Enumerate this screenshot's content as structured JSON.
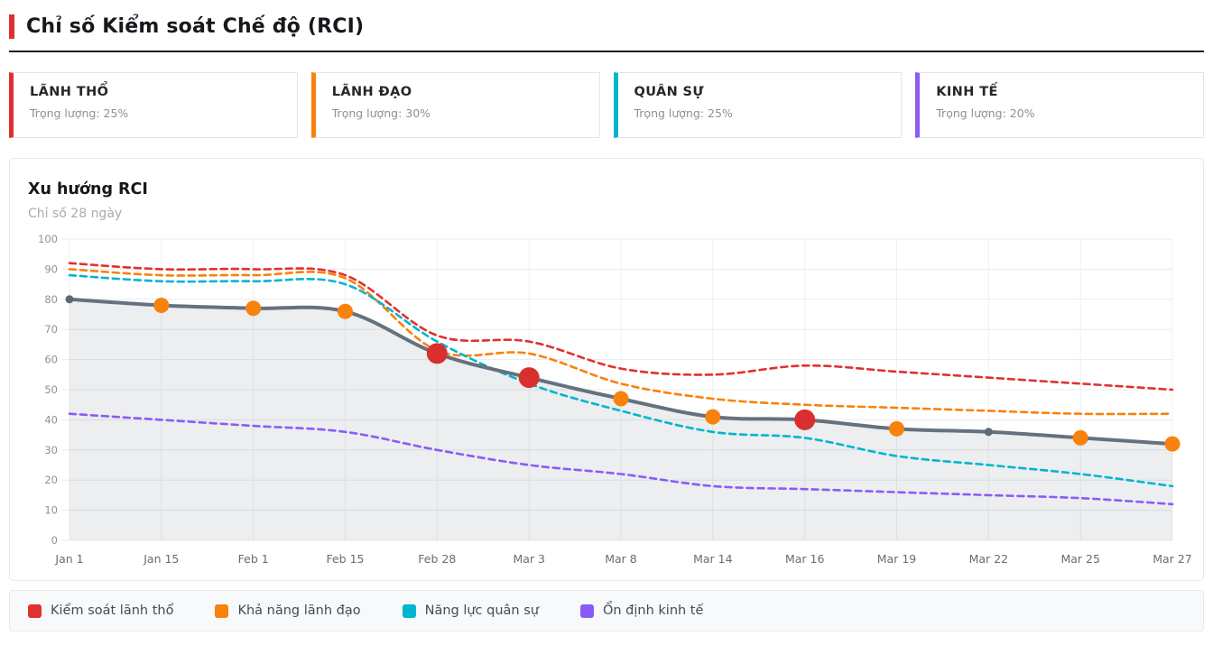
{
  "header": {
    "title": "Chỉ số Kiểm soát Chế độ (RCI)",
    "accent_color": "#e03131"
  },
  "cards": [
    {
      "title": "LÃNH THỔ",
      "subtitle": "Trọng lượng: 25%",
      "accent_color": "#e03131"
    },
    {
      "title": "LÃNH ĐẠO",
      "subtitle": "Trọng lượng: 30%",
      "accent_color": "#f8820c"
    },
    {
      "title": "QUÂN SỰ",
      "subtitle": "Trọng lượng: 25%",
      "accent_color": "#00b5cf"
    },
    {
      "title": "KINH TẾ",
      "subtitle": "Trọng lượng: 20%",
      "accent_color": "#8a5cf6"
    }
  ],
  "chart": {
    "title": "Xu hướng RCI",
    "subtitle": "Chỉ số 28 ngày"
  },
  "chart_data": {
    "type": "line",
    "title": "Xu hướng RCI",
    "subtitle": "Chỉ số 28 ngày",
    "xlabel": "",
    "ylabel": "",
    "ylim": [
      0,
      100
    ],
    "ytick_step": 10,
    "grid": true,
    "legend_position": "bottom",
    "categories": [
      "Jan 1",
      "Jan 15",
      "Feb 1",
      "Feb 15",
      "Feb 28",
      "Mar 3",
      "Mar 8",
      "Mar 14",
      "Mar 16",
      "Mar 19",
      "Mar 22",
      "Mar 25",
      "Mar 27"
    ],
    "main_series": {
      "name": "RCI",
      "color": "#66717f",
      "area_fill": "rgba(102,113,127,0.12)",
      "values": [
        80,
        78,
        77,
        76,
        62,
        54,
        47,
        41,
        40,
        37,
        36,
        34,
        32
      ],
      "point_styles": [
        "dot",
        "event",
        "event",
        "event",
        "major",
        "major",
        "event",
        "event",
        "major",
        "event",
        "dot",
        "event",
        "event"
      ]
    },
    "marker_styles": {
      "major": {
        "color": "#d92f2f",
        "radius": 11.5
      },
      "event": {
        "color": "#f8820c",
        "radius": 8.5
      },
      "dot": {
        "color": "#5d6875",
        "radius": 4.5
      }
    },
    "series": [
      {
        "name": "Kiểm soát lãnh thổ",
        "color": "#e03131",
        "dash": true,
        "values": [
          92,
          90,
          90,
          88,
          68,
          66,
          57,
          55,
          58,
          56,
          54,
          52,
          50
        ]
      },
      {
        "name": "Khả năng lãnh đạo",
        "color": "#f8820c",
        "dash": true,
        "values": [
          90,
          88,
          88,
          87,
          63,
          62,
          52,
          47,
          45,
          44,
          43,
          42,
          42
        ]
      },
      {
        "name": "Năng lực quân sự",
        "color": "#00b5cf",
        "dash": true,
        "values": [
          88,
          86,
          86,
          85,
          66,
          52,
          43,
          36,
          34,
          28,
          25,
          22,
          18
        ]
      },
      {
        "name": "Ổn định kinh tế",
        "color": "#8a5cf6",
        "dash": true,
        "values": [
          42,
          40,
          38,
          36,
          30,
          25,
          22,
          18,
          17,
          16,
          15,
          14,
          12
        ]
      }
    ]
  },
  "legend": {
    "items": [
      {
        "label": "Kiểm soát lãnh thổ",
        "color": "#e03131"
      },
      {
        "label": "Khả năng lãnh đạo",
        "color": "#f8820c"
      },
      {
        "label": "Năng lực quân sự",
        "color": "#00b5cf"
      },
      {
        "label": "Ổn định kinh tế",
        "color": "#8a5cf6"
      }
    ]
  }
}
